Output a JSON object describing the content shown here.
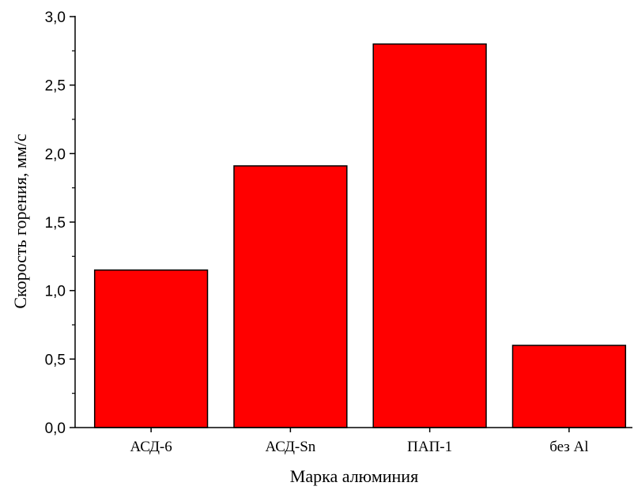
{
  "chart_data": {
    "type": "bar",
    "categories": [
      "АСД-6",
      "АСД-Sn",
      "ПАП-1",
      "без Al"
    ],
    "values": [
      1.15,
      1.91,
      2.8,
      0.6
    ],
    "title": "",
    "xlabel": "Марка алюминия",
    "ylabel": "Скорость горения, мм/с",
    "ylim": [
      0,
      3.0
    ],
    "yticks": [
      0,
      0.5,
      1.0,
      1.5,
      2.0,
      2.5,
      3.0
    ],
    "ytick_labels": [
      "0,0",
      "0,5",
      "1,0",
      "1,5",
      "2,0",
      "2,5",
      "3,0"
    ],
    "bar_color": "#ff0000",
    "edge_color": "#000000",
    "grid": false,
    "legend": "none"
  }
}
